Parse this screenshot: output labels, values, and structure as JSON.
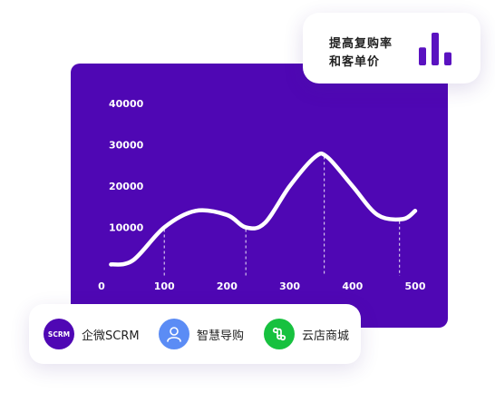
{
  "chart_data": {
    "type": "line",
    "title": "",
    "xlabel": "",
    "ylabel": "",
    "xlim": [
      0,
      500
    ],
    "ylim": [
      0,
      40000
    ],
    "x_ticks": [
      "0",
      "100",
      "200",
      "300",
      "400",
      "500"
    ],
    "y_ticks": [
      "40000",
      "30000",
      "20000",
      "10000"
    ],
    "series": [
      {
        "x": [
          15,
          50,
          100,
          150,
          200,
          230,
          260,
          300,
          340,
          360,
          400,
          440,
          480,
          500
        ],
        "y": [
          1000,
          2000,
          10000,
          14000,
          13000,
          10000,
          11000,
          20000,
          27000,
          27000,
          20000,
          13000,
          12000,
          14000
        ]
      }
    ],
    "markers_x": [
      100,
      230,
      355,
      475
    ],
    "line_color": "#ffffff",
    "background_color": "#4f07b4",
    "grid": false,
    "legend": "none"
  },
  "top_card": {
    "line1": "提高复购率",
    "line2": "和客单价",
    "mini_bars": [
      0.55,
      1.0,
      0.4
    ],
    "bar_color": "#5a12c0"
  },
  "features": [
    {
      "icon": "scrm-icon",
      "icon_text": "SCRM",
      "label": "企微SCRM",
      "color": "#4f07b4"
    },
    {
      "icon": "user-icon",
      "label": "智慧导购",
      "color": "#5b8cf5"
    },
    {
      "icon": "mini-program-icon",
      "label": "云店商城",
      "color": "#17c13f"
    }
  ]
}
